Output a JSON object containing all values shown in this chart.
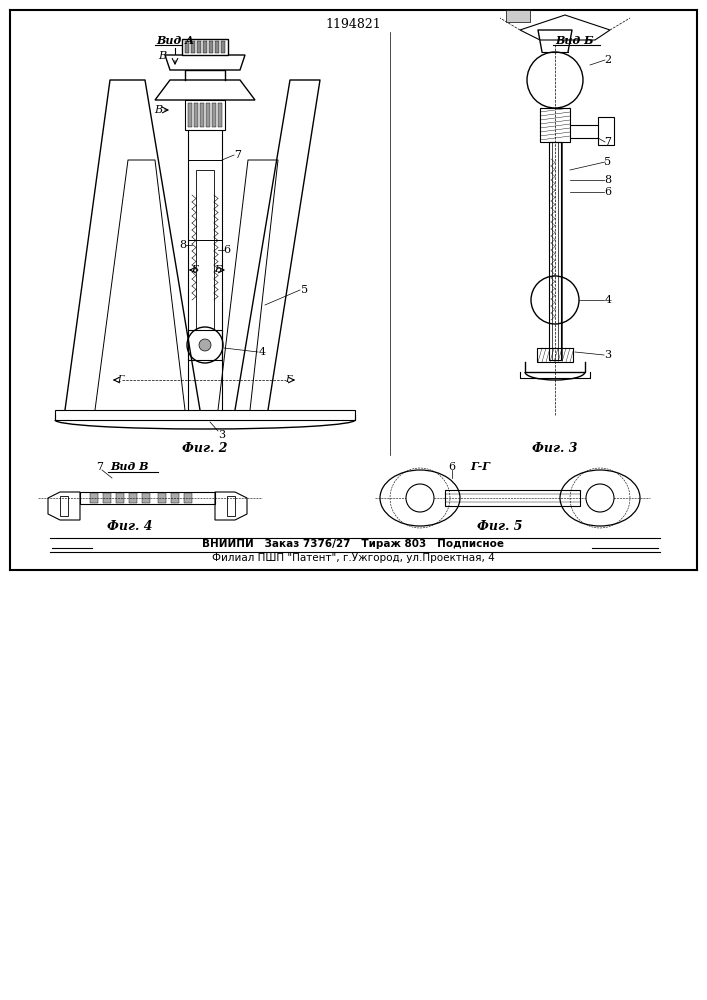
{
  "title": "1194821",
  "bg_color": "#ffffff",
  "line_color": "#000000",
  "footer_line1": "ВНИИПИ   Заказ 7376/27   Тираж 803   Подписное",
  "footer_line2": "Филиал ПШП \"Патент\", г.Ужгород, ул.Проектная, 4",
  "fig2_label": "Фиг. 2",
  "fig3_label": "Фиг. 3",
  "fig4_label": "Фиг. 4",
  "fig5_label": "Фиг. 5",
  "vid_a": "Вид А",
  "vid_b": "Вид Б",
  "vid_v": "Вид В",
  "g_g": "Г-Г"
}
